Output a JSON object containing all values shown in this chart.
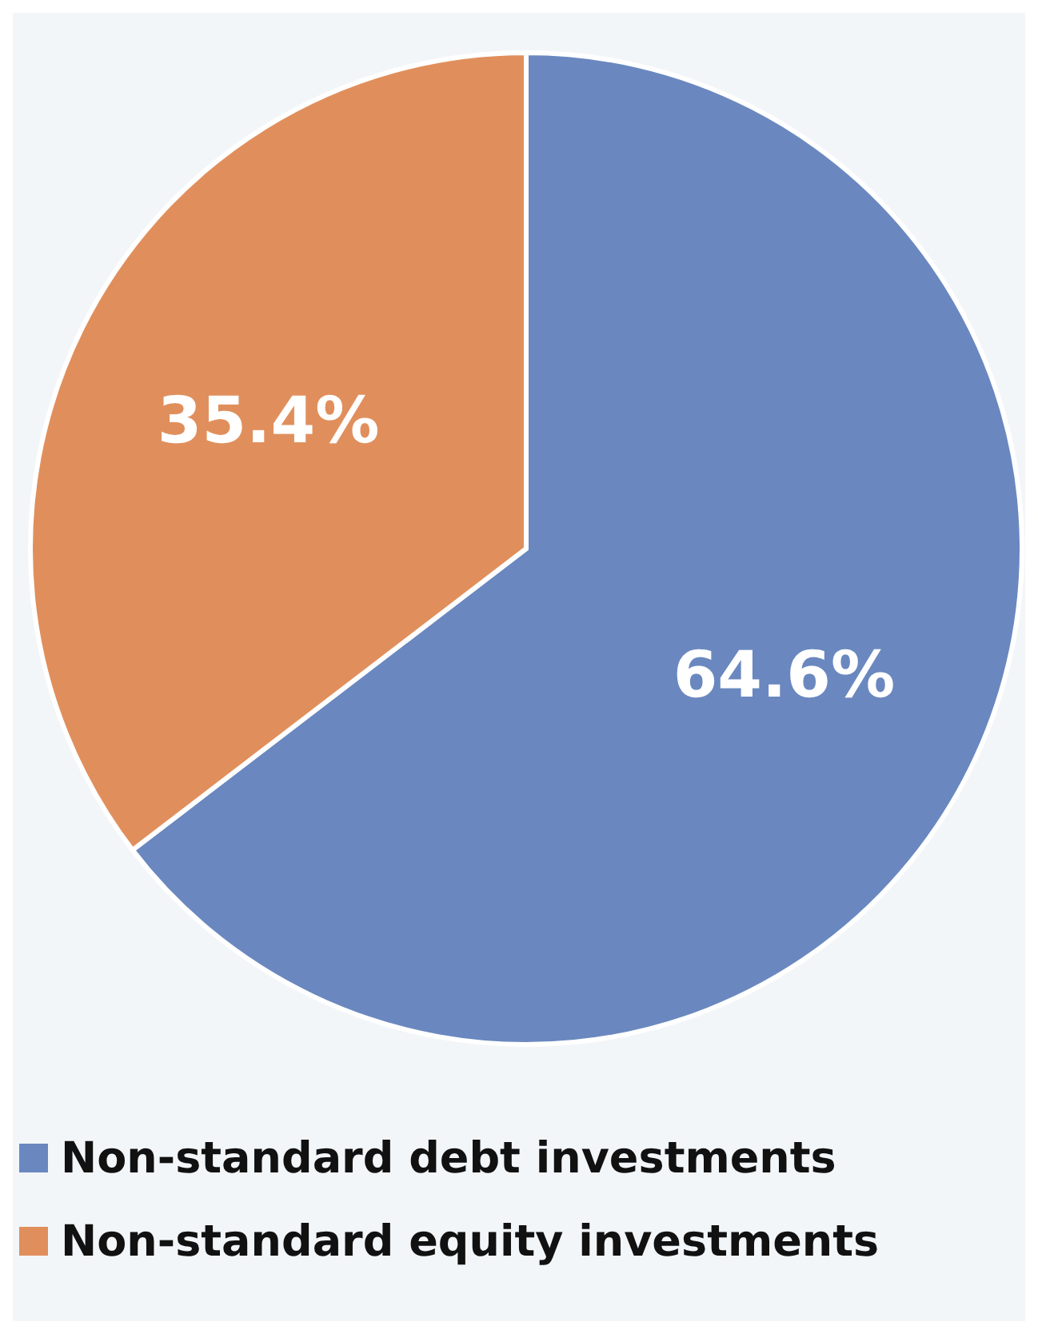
{
  "chart_data": {
    "type": "pie",
    "categories": [
      "Non-standard debt investments",
      "Non-standard equity investments"
    ],
    "values": [
      64.6,
      35.4
    ],
    "value_labels": [
      "64.6%",
      "35.4%"
    ],
    "colors": [
      "#6a88bf",
      "#e08f5c"
    ],
    "legend": "bottom"
  }
}
